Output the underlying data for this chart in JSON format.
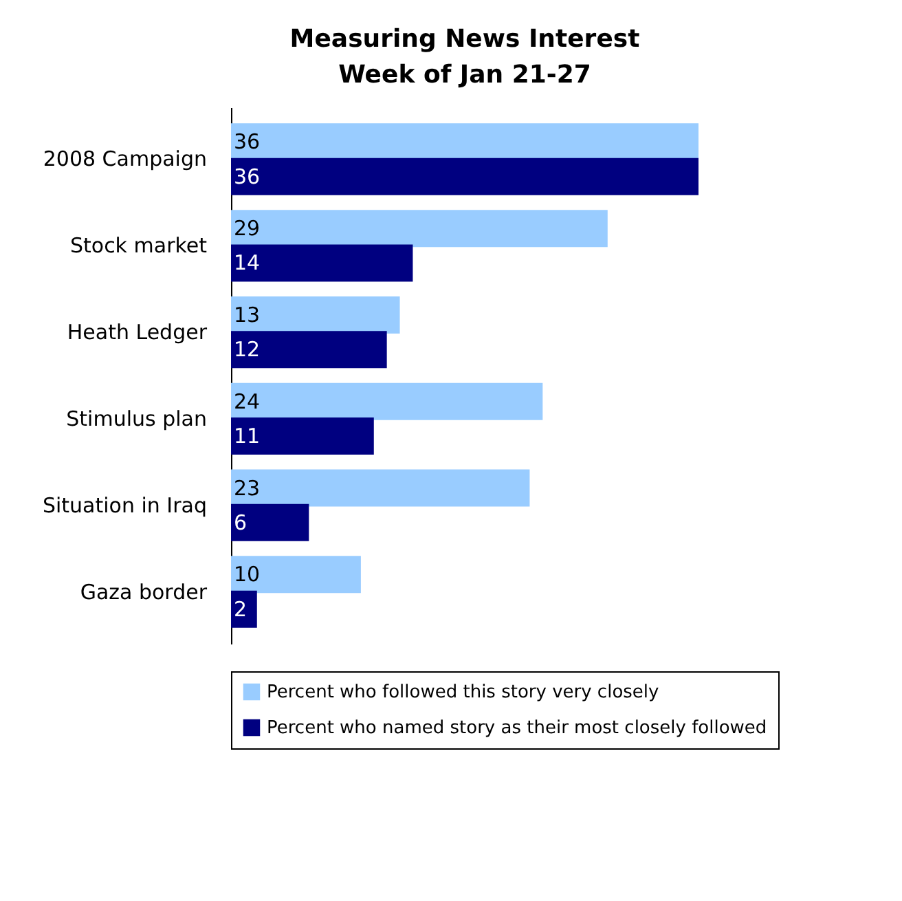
{
  "chart_data": {
    "type": "bar",
    "orientation": "horizontal",
    "title": "Measuring News Interest",
    "subtitle": "Week of Jan 21-27",
    "categories": [
      "2008 Campaign",
      "Stock market",
      "Heath Ledger",
      "Stimulus plan",
      "Situation in Iraq",
      "Gaza border"
    ],
    "series": [
      {
        "name": "Percent who followed this story very closely",
        "color": "#99ccff",
        "values": [
          36,
          29,
          13,
          24,
          23,
          10
        ]
      },
      {
        "name": "Percent who named story as their most closely followed",
        "color": "#000080",
        "values": [
          36,
          14,
          12,
          11,
          6,
          2
        ]
      }
    ],
    "data_labels": true,
    "legend": "bottom",
    "grid": false,
    "tick_labels": "y"
  }
}
